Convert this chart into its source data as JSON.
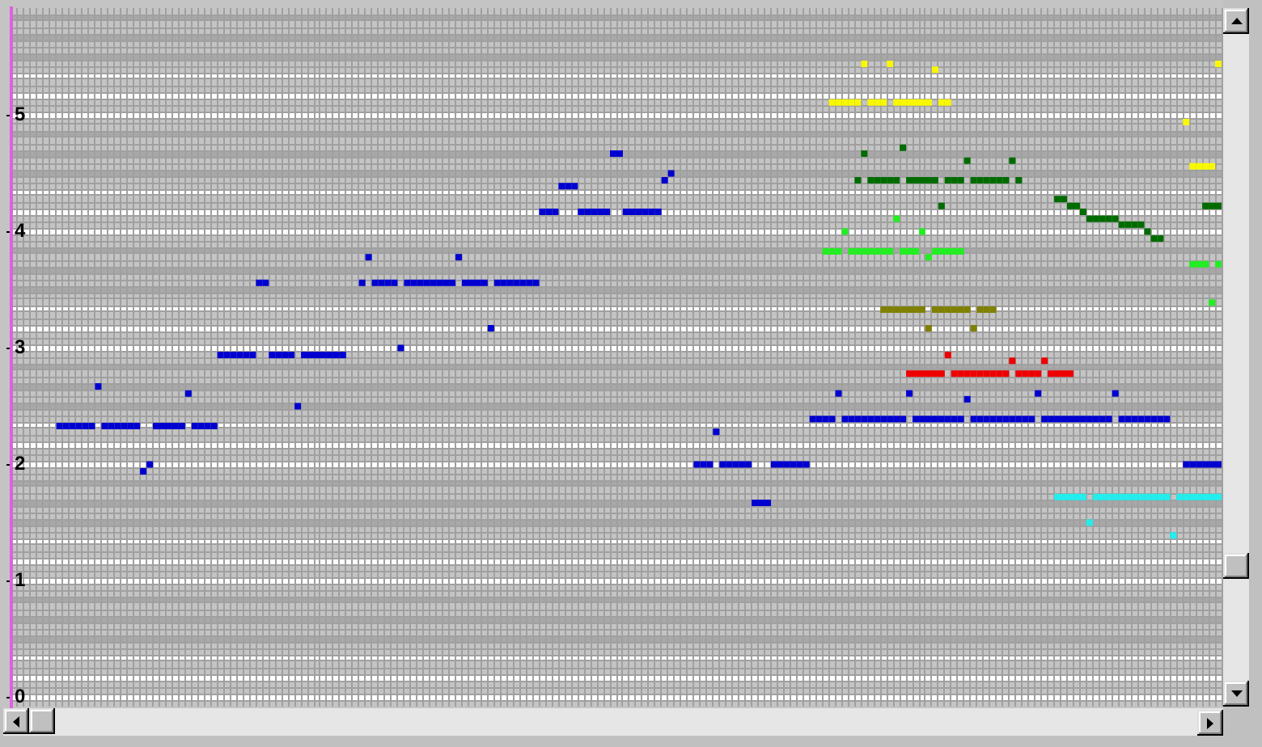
{
  "chart_data": {
    "type": "scatter",
    "marker": "square",
    "grid": true,
    "tick_labels": "y",
    "categories": [
      null,
      null,
      null,
      null,
      null,
      null,
      null,
      null,
      null,
      null,
      null,
      null,
      null,
      null,
      null,
      null,
      null,
      null,
      null,
      null,
      null,
      null,
      null,
      null,
      null,
      null,
      null,
      null,
      null,
      null,
      null,
      null,
      null,
      null,
      null,
      null,
      null,
      null,
      null,
      null,
      null,
      null,
      null,
      null,
      null,
      null,
      null,
      null,
      null,
      null,
      null,
      null,
      null,
      null,
      null,
      null,
      null,
      null,
      null,
      null,
      null,
      null,
      null,
      null,
      null,
      null,
      null,
      null,
      null,
      null,
      null,
      null,
      null,
      null,
      null,
      null,
      null,
      null,
      null,
      null,
      null,
      null,
      null,
      null,
      null,
      null,
      null,
      null,
      null,
      null,
      null,
      null,
      null,
      null,
      null,
      null,
      null,
      null,
      null,
      null,
      null,
      null,
      null,
      null,
      null,
      null,
      null,
      null,
      null,
      null,
      null,
      null,
      null,
      null,
      null,
      null,
      null,
      null,
      null,
      null,
      null,
      null,
      null,
      null,
      null,
      null,
      null,
      null,
      null,
      null,
      null,
      null,
      null,
      null,
      null,
      null,
      null,
      null,
      null,
      null,
      null,
      null,
      null,
      null,
      null,
      null,
      null,
      null,
      null,
      null,
      null,
      null,
      null,
      null,
      null,
      null,
      null,
      null,
      null,
      null,
      null,
      null,
      null,
      null,
      null,
      null,
      null,
      null,
      null,
      null,
      null,
      null,
      null,
      null,
      null,
      null,
      null,
      null,
      null,
      null,
      null,
      null,
      null,
      null,
      null,
      null,
      null,
      null
    ],
    "ylim": [
      -0.08,
      5.92
    ],
    "yticks": [
      {
        "value": -0.03,
        "label": null
      },
      0,
      {
        "value": 0.03,
        "label": null
      },
      {
        "value": 0.08,
        "label": null
      },
      {
        "value": 0.14,
        "label": null
      },
      {
        "value": 0.19,
        "label": null
      },
      {
        "value": 0.25,
        "label": null
      },
      {
        "value": 0.31,
        "label": null
      },
      {
        "value": 0.36,
        "label": null
      },
      {
        "value": 0.42,
        "label": null
      },
      {
        "value": 0.47,
        "label": null
      },
      {
        "value": 0.53,
        "label": null
      },
      {
        "value": 0.58,
        "label": null
      },
      {
        "value": 0.64,
        "label": null
      },
      {
        "value": 0.69,
        "label": null
      },
      {
        "value": 0.75,
        "label": null
      },
      {
        "value": 0.81,
        "label": null
      },
      {
        "value": 0.86,
        "label": null
      },
      {
        "value": 0.92,
        "label": null
      },
      {
        "value": 0.97,
        "label": null
      },
      1,
      {
        "value": 1.03,
        "label": null
      },
      {
        "value": 1.08,
        "label": null
      },
      {
        "value": 1.14,
        "label": null
      },
      {
        "value": 1.19,
        "label": null
      },
      {
        "value": 1.25,
        "label": null
      },
      {
        "value": 1.31,
        "label": null
      },
      {
        "value": 1.36,
        "label": null
      },
      {
        "value": 1.42,
        "label": null
      },
      {
        "value": 1.47,
        "label": null
      },
      {
        "value": 1.53,
        "label": null
      },
      {
        "value": 1.58,
        "label": null
      },
      {
        "value": 1.64,
        "label": null
      },
      {
        "value": 1.69,
        "label": null
      },
      {
        "value": 1.75,
        "label": null
      },
      {
        "value": 1.81,
        "label": null
      },
      {
        "value": 1.86,
        "label": null
      },
      {
        "value": 1.92,
        "label": null
      },
      {
        "value": 1.97,
        "label": null
      },
      2,
      {
        "value": 2.03,
        "label": null
      },
      {
        "value": 2.08,
        "label": null
      },
      {
        "value": 2.14,
        "label": null
      },
      {
        "value": 2.19,
        "label": null
      },
      {
        "value": 2.25,
        "label": null
      },
      {
        "value": 2.31,
        "label": null
      },
      {
        "value": 2.36,
        "label": null
      },
      {
        "value": 2.42,
        "label": null
      },
      {
        "value": 2.47,
        "label": null
      },
      {
        "value": 2.53,
        "label": null
      },
      {
        "value": 2.58,
        "label": null
      },
      {
        "value": 2.64,
        "label": null
      },
      {
        "value": 2.69,
        "label": null
      },
      {
        "value": 2.75,
        "label": null
      },
      {
        "value": 2.81,
        "label": null
      },
      {
        "value": 2.86,
        "label": null
      },
      {
        "value": 2.92,
        "label": null
      },
      {
        "value": 2.97,
        "label": null
      },
      3,
      {
        "value": 3.03,
        "label": null
      },
      {
        "value": 3.08,
        "label": null
      },
      {
        "value": 3.14,
        "label": null
      },
      {
        "value": 3.19,
        "label": null
      },
      {
        "value": 3.25,
        "label": null
      },
      {
        "value": 3.31,
        "label": null
      },
      {
        "value": 3.36,
        "label": null
      },
      {
        "value": 3.42,
        "label": null
      },
      {
        "value": 3.47,
        "label": null
      },
      {
        "value": 3.53,
        "label": null
      },
      {
        "value": 3.58,
        "label": null
      },
      {
        "value": 3.64,
        "label": null
      },
      {
        "value": 3.69,
        "label": null
      },
      {
        "value": 3.75,
        "label": null
      },
      {
        "value": 3.81,
        "label": null
      },
      {
        "value": 3.86,
        "label": null
      },
      {
        "value": 3.92,
        "label": null
      },
      {
        "value": 3.97,
        "label": null
      },
      4,
      {
        "value": 4.03,
        "label": null
      },
      {
        "value": 4.08,
        "label": null
      },
      {
        "value": 4.14,
        "label": null
      },
      {
        "value": 4.19,
        "label": null
      },
      {
        "value": 4.25,
        "label": null
      },
      {
        "value": 4.31,
        "label": null
      },
      {
        "value": 4.36,
        "label": null
      },
      {
        "value": 4.42,
        "label": null
      },
      {
        "value": 4.47,
        "label": null
      },
      {
        "value": 4.53,
        "label": null
      },
      {
        "value": 4.58,
        "label": null
      },
      {
        "value": 4.64,
        "label": null
      },
      {
        "value": 4.69,
        "label": null
      },
      {
        "value": 4.75,
        "label": null
      },
      {
        "value": 4.81,
        "label": null
      },
      {
        "value": 4.86,
        "label": null
      },
      {
        "value": 4.92,
        "label": null
      },
      {
        "value": 4.97,
        "label": null
      },
      5,
      {
        "value": 5.03,
        "label": null
      },
      {
        "value": 5.08,
        "label": null
      },
      {
        "value": 5.14,
        "label": null
      },
      {
        "value": 5.19,
        "label": null
      },
      {
        "value": 5.25,
        "label": null
      },
      {
        "value": 5.31,
        "label": null
      },
      {
        "value": 5.36,
        "label": null
      },
      {
        "value": 5.42,
        "label": null
      },
      {
        "value": 5.47,
        "label": null
      },
      {
        "value": 5.53,
        "label": null
      },
      {
        "value": 5.58,
        "label": null
      },
      {
        "value": 5.64,
        "label": null
      },
      {
        "value": 5.69,
        "label": null
      },
      {
        "value": 5.75,
        "label": null
      },
      {
        "value": 5.81,
        "label": null
      },
      {
        "value": 5.86,
        "label": null
      }
    ],
    "bands": [
      {
        "axis": "y",
        "from": -0.03,
        "to": 0.03,
        "color": "#ffffff"
      },
      {
        "axis": "y",
        "from": 0.14,
        "to": 0.19,
        "color": "#ffffff"
      },
      {
        "axis": "y",
        "from": 0.31,
        "to": 0.36,
        "color": "#ffffff"
      },
      {
        "axis": "y",
        "from": 0.47,
        "to": 0.53,
        "color": "#a8a8a8"
      },
      {
        "axis": "y",
        "from": 0.64,
        "to": 0.69,
        "color": "#a8a8a8"
      },
      {
        "axis": "y",
        "from": 0.81,
        "to": 0.86,
        "color": "#a8a8a8"
      },
      {
        "axis": "y",
        "from": 0.97,
        "to": 1.03,
        "color": "#ffffff"
      },
      {
        "axis": "y",
        "from": 1.14,
        "to": 1.19,
        "color": "#ffffff"
      },
      {
        "axis": "y",
        "from": 1.31,
        "to": 1.36,
        "color": "#ffffff"
      },
      {
        "axis": "y",
        "from": 1.47,
        "to": 1.53,
        "color": "#a8a8a8"
      },
      {
        "axis": "y",
        "from": 1.64,
        "to": 1.69,
        "color": "#a8a8a8"
      },
      {
        "axis": "y",
        "from": 1.81,
        "to": 1.86,
        "color": "#a8a8a8"
      },
      {
        "axis": "y",
        "from": 1.97,
        "to": 2.03,
        "color": "#ffffff"
      },
      {
        "axis": "y",
        "from": 2.14,
        "to": 2.19,
        "color": "#ffffff"
      },
      {
        "axis": "y",
        "from": 2.31,
        "to": 2.36,
        "color": "#ffffff"
      },
      {
        "axis": "y",
        "from": 2.47,
        "to": 2.53,
        "color": "#a8a8a8"
      },
      {
        "axis": "y",
        "from": 2.64,
        "to": 2.69,
        "color": "#a8a8a8"
      },
      {
        "axis": "y",
        "from": 2.81,
        "to": 2.86,
        "color": "#a8a8a8"
      },
      {
        "axis": "y",
        "from": 2.97,
        "to": 3.03,
        "color": "#ffffff"
      },
      {
        "axis": "y",
        "from": 3.14,
        "to": 3.19,
        "color": "#ffffff"
      },
      {
        "axis": "y",
        "from": 3.31,
        "to": 3.36,
        "color": "#ffffff"
      },
      {
        "axis": "y",
        "from": 3.47,
        "to": 3.53,
        "color": "#a8a8a8"
      },
      {
        "axis": "y",
        "from": 3.64,
        "to": 3.69,
        "color": "#a8a8a8"
      },
      {
        "axis": "y",
        "from": 3.81,
        "to": 3.86,
        "color": "#a8a8a8"
      },
      {
        "axis": "y",
        "from": 3.97,
        "to": 4.03,
        "color": "#ffffff"
      },
      {
        "axis": "y",
        "from": 4.14,
        "to": 4.19,
        "color": "#ffffff"
      },
      {
        "axis": "y",
        "from": 4.31,
        "to": 4.36,
        "color": "#ffffff"
      },
      {
        "axis": "y",
        "from": 4.47,
        "to": 4.53,
        "color": "#a8a8a8"
      },
      {
        "axis": "y",
        "from": 4.64,
        "to": 4.69,
        "color": "#a8a8a8"
      },
      {
        "axis": "y",
        "from": 4.81,
        "to": 4.86,
        "color": "#a8a8a8"
      },
      {
        "axis": "y",
        "from": 4.97,
        "to": 5.03,
        "color": "#ffffff"
      },
      {
        "axis": "y",
        "from": 5.14,
        "to": 5.19,
        "color": "#ffffff"
      },
      {
        "axis": "y",
        "from": 5.31,
        "to": 5.36,
        "color": "#ffffff"
      },
      {
        "axis": "y",
        "from": 5.47,
        "to": 5.53,
        "color": "#a8a8a8"
      },
      {
        "axis": "y",
        "from": 5.64,
        "to": 5.69,
        "color": "#a8a8a8"
      },
      {
        "axis": "y",
        "from": 5.81,
        "to": 5.86,
        "color": "#a8a8a8"
      }
    ],
    "series": [
      {
        "color": "#0000d0",
        "values": [
          null,
          null,
          null,
          null,
          null,
          null,
          null,
          2.33,
          2.33,
          2.33,
          2.33,
          2.33,
          2.33,
          2.67,
          2.33,
          2.33,
          2.33,
          2.33,
          2.33,
          2.33,
          1.94,
          2,
          2.33,
          2.33,
          2.33,
          2.33,
          2.33,
          2.61,
          2.33,
          2.33,
          2.33,
          2.33,
          2.94,
          2.94,
          2.94,
          2.94,
          2.94,
          2.94,
          3.56,
          3.56,
          2.94,
          2.94,
          2.94,
          2.94,
          2.5,
          2.94,
          2.94,
          2.94,
          2.94,
          2.94,
          2.94,
          2.94,
          null,
          null,
          3.56,
          3.78,
          3.56,
          3.56,
          3.56,
          3.56,
          3,
          3.56,
          3.56,
          3.56,
          3.56,
          3.56,
          3.56,
          3.56,
          3.56,
          3.78,
          3.56,
          3.56,
          3.56,
          3.56,
          3.17,
          3.56,
          3.56,
          3.56,
          3.56,
          3.56,
          3.56,
          3.56,
          4.17,
          4.17,
          4.17,
          4.39,
          4.39,
          4.39,
          4.17,
          4.17,
          4.17,
          4.17,
          4.17,
          4.67,
          4.67,
          4.17,
          4.17,
          4.17,
          4.17,
          4.17,
          4.17,
          4.44,
          4.5,
          null,
          null,
          null,
          2,
          2,
          2,
          2.28,
          2,
          2,
          2,
          2,
          2,
          1.67,
          1.67,
          1.67,
          2,
          2,
          2,
          2,
          2,
          2,
          2.39,
          2.39,
          2.39,
          2.39,
          2.61,
          2.39,
          2.39,
          2.39,
          2.39,
          2.39,
          2.39,
          2.39,
          2.39,
          2.39,
          2.39,
          2.61,
          2.39,
          2.39,
          2.39,
          2.39,
          2.39,
          2.39,
          2.39,
          2.39,
          2.56,
          2.39,
          2.39,
          2.39,
          2.39,
          2.39,
          2.39,
          2.39,
          2.39,
          2.39,
          2.39,
          2.61,
          2.39,
          2.39,
          2.39,
          2.39,
          2.39,
          2.39,
          2.39,
          2.39,
          2.39,
          2.39,
          2.39,
          2.61,
          2.39,
          2.39,
          2.39,
          2.39,
          2.39,
          2.39,
          2.39,
          2.39,
          null,
          null,
          2,
          2,
          2,
          2,
          2,
          2
        ]
      },
      {
        "color": "#f8f800",
        "values": [
          null,
          null,
          null,
          null,
          null,
          null,
          null,
          null,
          null,
          null,
          null,
          null,
          null,
          null,
          null,
          null,
          null,
          null,
          null,
          null,
          null,
          null,
          null,
          null,
          null,
          null,
          null,
          null,
          null,
          null,
          null,
          null,
          null,
          null,
          null,
          null,
          null,
          null,
          null,
          null,
          null,
          null,
          null,
          null,
          null,
          null,
          null,
          null,
          null,
          null,
          null,
          null,
          null,
          null,
          null,
          null,
          null,
          null,
          null,
          null,
          null,
          null,
          null,
          null,
          null,
          null,
          null,
          null,
          null,
          null,
          null,
          null,
          null,
          null,
          null,
          null,
          null,
          null,
          null,
          null,
          null,
          null,
          null,
          null,
          null,
          null,
          null,
          null,
          null,
          null,
          null,
          null,
          null,
          null,
          null,
          null,
          null,
          null,
          null,
          null,
          null,
          null,
          null,
          null,
          null,
          null,
          null,
          null,
          null,
          null,
          null,
          null,
          null,
          null,
          null,
          null,
          null,
          null,
          null,
          null,
          null,
          null,
          null,
          null,
          null,
          null,
          null,
          5.11,
          5.11,
          5.11,
          5.11,
          5.11,
          5.44,
          5.11,
          5.11,
          5.11,
          5.44,
          5.11,
          5.11,
          5.11,
          5.11,
          5.11,
          5.11,
          5.39,
          5.11,
          5.11,
          null,
          null,
          null,
          null,
          null,
          null,
          null,
          null,
          null,
          null,
          null,
          null,
          null,
          null,
          null,
          null,
          null,
          null,
          null,
          null,
          null,
          null,
          null,
          null,
          null,
          null,
          null,
          null,
          null,
          null,
          null,
          null,
          null,
          null,
          null,
          null,
          4.94,
          4.56,
          4.56,
          4.56,
          4.56,
          5.44
        ]
      },
      {
        "color": "#006c00",
        "values": [
          null,
          null,
          null,
          null,
          null,
          null,
          null,
          null,
          null,
          null,
          null,
          null,
          null,
          null,
          null,
          null,
          null,
          null,
          null,
          null,
          null,
          null,
          null,
          null,
          null,
          null,
          null,
          null,
          null,
          null,
          null,
          null,
          null,
          null,
          null,
          null,
          null,
          null,
          null,
          null,
          null,
          null,
          null,
          null,
          null,
          null,
          null,
          null,
          null,
          null,
          null,
          null,
          null,
          null,
          null,
          null,
          null,
          null,
          null,
          null,
          null,
          null,
          null,
          null,
          null,
          null,
          null,
          null,
          null,
          null,
          null,
          null,
          null,
          null,
          null,
          null,
          null,
          null,
          null,
          null,
          null,
          null,
          null,
          null,
          null,
          null,
          null,
          null,
          null,
          null,
          null,
          null,
          null,
          null,
          null,
          null,
          null,
          null,
          null,
          null,
          null,
          null,
          null,
          null,
          null,
          null,
          null,
          null,
          null,
          null,
          null,
          null,
          null,
          null,
          null,
          null,
          null,
          null,
          null,
          null,
          null,
          null,
          null,
          null,
          null,
          null,
          null,
          null,
          null,
          null,
          null,
          4.44,
          4.67,
          4.44,
          4.44,
          4.44,
          4.44,
          4.44,
          4.72,
          4.44,
          4.44,
          4.44,
          4.44,
          4.44,
          4.22,
          4.44,
          4.44,
          4.44,
          4.61,
          4.44,
          4.44,
          4.44,
          4.44,
          4.44,
          4.44,
          4.61,
          4.44,
          null,
          null,
          null,
          null,
          null,
          4.28,
          4.28,
          4.22,
          4.22,
          4.17,
          4.11,
          4.11,
          4.11,
          4.11,
          4.11,
          4.06,
          4.06,
          4.06,
          4.06,
          4,
          3.94,
          3.94,
          null,
          null,
          null,
          null,
          null,
          null,
          4.22,
          4.22,
          4.22
        ]
      },
      {
        "color": "#22ee22",
        "values": [
          null,
          null,
          null,
          null,
          null,
          null,
          null,
          null,
          null,
          null,
          null,
          null,
          null,
          null,
          null,
          null,
          null,
          null,
          null,
          null,
          null,
          null,
          null,
          null,
          null,
          null,
          null,
          null,
          null,
          null,
          null,
          null,
          null,
          null,
          null,
          null,
          null,
          null,
          null,
          null,
          null,
          null,
          null,
          null,
          null,
          null,
          null,
          null,
          null,
          null,
          null,
          null,
          null,
          null,
          null,
          null,
          null,
          null,
          null,
          null,
          null,
          null,
          null,
          null,
          null,
          null,
          null,
          null,
          null,
          null,
          null,
          null,
          null,
          null,
          null,
          null,
          null,
          null,
          null,
          null,
          null,
          null,
          null,
          null,
          null,
          null,
          null,
          null,
          null,
          null,
          null,
          null,
          null,
          null,
          null,
          null,
          null,
          null,
          null,
          null,
          null,
          null,
          null,
          null,
          null,
          null,
          null,
          null,
          null,
          null,
          null,
          null,
          null,
          null,
          null,
          null,
          null,
          null,
          null,
          null,
          null,
          null,
          null,
          null,
          null,
          null,
          3.83,
          3.83,
          3.83,
          4,
          3.83,
          3.83,
          3.83,
          3.83,
          3.83,
          3.83,
          3.83,
          4.11,
          3.83,
          3.83,
          3.83,
          4,
          3.78,
          3.83,
          3.83,
          3.83,
          3.83,
          3.83,
          null,
          null,
          null,
          null,
          null,
          null,
          null,
          null,
          null,
          null,
          null,
          null,
          null,
          null,
          null,
          null,
          null,
          null,
          null,
          null,
          null,
          null,
          null,
          null,
          null,
          null,
          null,
          null,
          null,
          null,
          null,
          null,
          null,
          null,
          null,
          3.72,
          3.72,
          3.72,
          3.39,
          3.72
        ]
      },
      {
        "color": "#808000",
        "values": [
          null,
          null,
          null,
          null,
          null,
          null,
          null,
          null,
          null,
          null,
          null,
          null,
          null,
          null,
          null,
          null,
          null,
          null,
          null,
          null,
          null,
          null,
          null,
          null,
          null,
          null,
          null,
          null,
          null,
          null,
          null,
          null,
          null,
          null,
          null,
          null,
          null,
          null,
          null,
          null,
          null,
          null,
          null,
          null,
          null,
          null,
          null,
          null,
          null,
          null,
          null,
          null,
          null,
          null,
          null,
          null,
          null,
          null,
          null,
          null,
          null,
          null,
          null,
          null,
          null,
          null,
          null,
          null,
          null,
          null,
          null,
          null,
          null,
          null,
          null,
          null,
          null,
          null,
          null,
          null,
          null,
          null,
          null,
          null,
          null,
          null,
          null,
          null,
          null,
          null,
          null,
          null,
          null,
          null,
          null,
          null,
          null,
          null,
          null,
          null,
          null,
          null,
          null,
          null,
          null,
          null,
          null,
          null,
          null,
          null,
          null,
          null,
          null,
          null,
          null,
          null,
          null,
          null,
          null,
          null,
          null,
          null,
          null,
          null,
          null,
          null,
          null,
          null,
          null,
          null,
          null,
          null,
          null,
          null,
          null,
          3.33,
          3.33,
          3.33,
          3.33,
          3.33,
          3.33,
          3.33,
          3.17,
          3.33,
          3.33,
          3.33,
          3.33,
          3.33,
          3.33,
          3.17,
          3.33,
          3.33,
          3.33,
          null,
          null,
          null,
          null,
          null,
          null,
          null,
          null,
          null,
          null,
          null,
          null,
          null,
          null,
          null,
          null,
          null,
          null,
          null,
          null,
          null,
          null,
          null,
          null,
          null,
          null,
          null,
          null,
          null,
          null,
          null,
          null,
          null,
          null,
          null
        ]
      },
      {
        "color": "#ee0000",
        "values": [
          null,
          null,
          null,
          null,
          null,
          null,
          null,
          null,
          null,
          null,
          null,
          null,
          null,
          null,
          null,
          null,
          null,
          null,
          null,
          null,
          null,
          null,
          null,
          null,
          null,
          null,
          null,
          null,
          null,
          null,
          null,
          null,
          null,
          null,
          null,
          null,
          null,
          null,
          null,
          null,
          null,
          null,
          null,
          null,
          null,
          null,
          null,
          null,
          null,
          null,
          null,
          null,
          null,
          null,
          null,
          null,
          null,
          null,
          null,
          null,
          null,
          null,
          null,
          null,
          null,
          null,
          null,
          null,
          null,
          null,
          null,
          null,
          null,
          null,
          null,
          null,
          null,
          null,
          null,
          null,
          null,
          null,
          null,
          null,
          null,
          null,
          null,
          null,
          null,
          null,
          null,
          null,
          null,
          null,
          null,
          null,
          null,
          null,
          null,
          null,
          null,
          null,
          null,
          null,
          null,
          null,
          null,
          null,
          null,
          null,
          null,
          null,
          null,
          null,
          null,
          null,
          null,
          null,
          null,
          null,
          null,
          null,
          null,
          null,
          null,
          null,
          null,
          null,
          null,
          null,
          null,
          null,
          null,
          null,
          null,
          null,
          null,
          null,
          null,
          2.78,
          2.78,
          2.78,
          2.78,
          2.78,
          2.78,
          2.94,
          2.78,
          2.78,
          2.78,
          2.78,
          2.78,
          2.78,
          2.78,
          2.78,
          2.78,
          2.89,
          2.78,
          2.78,
          2.78,
          2.78,
          2.89,
          2.78,
          2.78,
          2.78,
          2.78,
          null,
          null,
          null,
          null,
          null,
          null,
          null,
          null,
          null,
          null,
          null,
          null,
          null,
          null,
          null,
          null,
          null,
          null,
          null,
          null,
          null,
          null,
          null
        ]
      },
      {
        "color": "#22eeee",
        "values": [
          null,
          null,
          null,
          null,
          null,
          null,
          null,
          null,
          null,
          null,
          null,
          null,
          null,
          null,
          null,
          null,
          null,
          null,
          null,
          null,
          null,
          null,
          null,
          null,
          null,
          null,
          null,
          null,
          null,
          null,
          null,
          null,
          null,
          null,
          null,
          null,
          null,
          null,
          null,
          null,
          null,
          null,
          null,
          null,
          null,
          null,
          null,
          null,
          null,
          null,
          null,
          null,
          null,
          null,
          null,
          null,
          null,
          null,
          null,
          null,
          null,
          null,
          null,
          null,
          null,
          null,
          null,
          null,
          null,
          null,
          null,
          null,
          null,
          null,
          null,
          null,
          null,
          null,
          null,
          null,
          null,
          null,
          null,
          null,
          null,
          null,
          null,
          null,
          null,
          null,
          null,
          null,
          null,
          null,
          null,
          null,
          null,
          null,
          null,
          null,
          null,
          null,
          null,
          null,
          null,
          null,
          null,
          null,
          null,
          null,
          null,
          null,
          null,
          null,
          null,
          null,
          null,
          null,
          null,
          null,
          null,
          null,
          null,
          null,
          null,
          null,
          null,
          null,
          null,
          null,
          null,
          null,
          null,
          null,
          null,
          null,
          null,
          null,
          null,
          null,
          null,
          null,
          null,
          null,
          null,
          null,
          null,
          null,
          null,
          null,
          null,
          null,
          null,
          null,
          null,
          null,
          null,
          null,
          null,
          null,
          null,
          null,
          1.72,
          1.72,
          1.72,
          1.72,
          1.72,
          1.5,
          1.72,
          1.72,
          1.72,
          1.72,
          1.72,
          1.72,
          1.72,
          1.72,
          1.72,
          1.72,
          1.72,
          1.72,
          1.39,
          1.72,
          1.72,
          1.72,
          1.72,
          1.72,
          1.72,
          1.72
        ]
      }
    ]
  }
}
